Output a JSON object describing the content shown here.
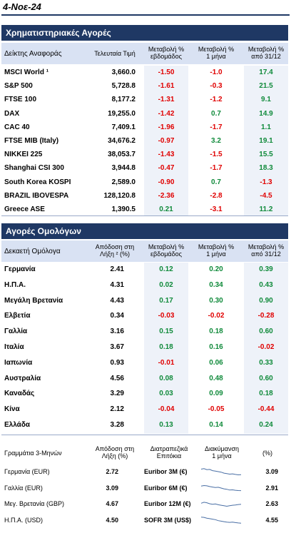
{
  "date": "4-Νοε-24",
  "stocks": {
    "title": "Χρηματιστηριακές Αγορές",
    "headers": {
      "index": "Δείκτης Αναφοράς",
      "last": "Τελευταία Τιμή",
      "week_l1": "Μεταβολή %",
      "week_l2": "εβδομάδος",
      "month_l1": "Μεταβολή %",
      "month_l2": "1 μήνα",
      "ytd_l1": "Μεταβολή %",
      "ytd_l2": "από 31/12"
    },
    "rows": [
      {
        "name": "MSCI World ¹",
        "value": "3,660.0",
        "week": "-1.50",
        "month": "-1.0",
        "ytd": "17.4"
      },
      {
        "name": "S&P 500",
        "value": "5,728.8",
        "week": "-1.61",
        "month": "-0.3",
        "ytd": "21.5"
      },
      {
        "name": "FTSE 100",
        "value": "8,177.2",
        "week": "-1.31",
        "month": "-1.2",
        "ytd": "9.1"
      },
      {
        "name": "DAX",
        "value": "19,255.0",
        "week": "-1.42",
        "month": "0.7",
        "ytd": "14.9"
      },
      {
        "name": "CAC 40",
        "value": "7,409.1",
        "week": "-1.96",
        "month": "-1.7",
        "ytd": "1.1"
      },
      {
        "name": "FTSE MIB (Italy)",
        "value": "34,676.2",
        "week": "-0.97",
        "month": "3.2",
        "ytd": "19.1"
      },
      {
        "name": "NIKKEI 225",
        "value": "38,053.7",
        "week": "-1.43",
        "month": "-1.5",
        "ytd": "15.5"
      },
      {
        "name": "Shanghai CSI 300",
        "value": "3,944.8",
        "week": "-0.47",
        "month": "-1.7",
        "ytd": "18.3"
      },
      {
        "name": "South Korea KOSPI",
        "value": "2,589.0",
        "week": "-0.90",
        "month": "0.7",
        "ytd": "-1.3"
      },
      {
        "name": "BRAZIL IBOVESPA",
        "value": "128,120.8",
        "week": "-2.36",
        "month": "-2.8",
        "ytd": "-4.5"
      },
      {
        "name": "Greece ASE",
        "value": "1,390.5",
        "week": "0.21",
        "month": "-3.1",
        "ytd": "11.2"
      }
    ]
  },
  "bonds": {
    "title": "Αγορές Ομολόγων",
    "headers": {
      "bond": "Δεκαετή Ομόλογα",
      "yield_l1": "Απόδοση στη",
      "yield_l2": "Λήξη ² (%)",
      "week_l1": "Μεταβολή %",
      "week_l2": "εβδομάδος",
      "month_l1": "Μεταβολή %",
      "month_l2": "1 μήνα",
      "ytd_l1": "Μεταβολή %",
      "ytd_l2": "από 31/12"
    },
    "rows": [
      {
        "name": "Γερμανία",
        "yield": "2.41",
        "week": "0.12",
        "month": "0.20",
        "ytd": "0.39"
      },
      {
        "name": "Η.Π.Α.",
        "yield": "4.31",
        "week": "0.02",
        "month": "0.34",
        "ytd": "0.43"
      },
      {
        "name": "Μεγάλη Βρετανία",
        "yield": "4.43",
        "week": "0.17",
        "month": "0.30",
        "ytd": "0.90"
      },
      {
        "name": "Ελβετία",
        "yield": "0.34",
        "week": "-0.03",
        "month": "-0.02",
        "ytd": "-0.28"
      },
      {
        "name": "Γαλλία",
        "yield": "3.16",
        "week": "0.15",
        "month": "0.18",
        "ytd": "0.60"
      },
      {
        "name": "Ιταλία",
        "yield": "3.67",
        "week": "0.18",
        "month": "0.16",
        "ytd": "-0.02"
      },
      {
        "name": "Ιαπωνία",
        "yield": "0.93",
        "week": "-0.01",
        "month": "0.06",
        "ytd": "0.33"
      },
      {
        "name": "Αυστραλία",
        "yield": "4.56",
        "week": "0.08",
        "month": "0.48",
        "ytd": "0.60"
      },
      {
        "name": "Καναδάς",
        "yield": "3.29",
        "week": "0.03",
        "month": "0.09",
        "ytd": "0.18"
      },
      {
        "name": "Κίνα",
        "yield": "2.12",
        "week": "-0.04",
        "month": "-0.05",
        "ytd": "-0.44"
      },
      {
        "name": "Ελλάδα",
        "yield": "3.28",
        "week": "0.13",
        "month": "0.14",
        "ytd": "0.24"
      }
    ]
  },
  "money": {
    "headers": {
      "bills": "Γραμμάτια 3-Μηνών",
      "yield_l1": "Απόδοση στη",
      "yield_l2": "Λήξη (%)",
      "rates_l1": "Διατραπεζικά",
      "rates_l2": "Επιτόκια",
      "spark_l1": "Διακύμανση",
      "spark_l2": "1 μήνα",
      "pct": "(%)"
    },
    "rows": [
      {
        "name": "Γερμανία (EUR)",
        "yield": "2.72",
        "rate_name": "Euribor 3M (€)",
        "rate": "3.09",
        "spark": [
          0.75,
          0.8,
          0.7,
          0.72,
          0.6,
          0.55,
          0.5,
          0.45,
          0.35,
          0.3,
          0.25,
          0.28,
          0.22,
          0.18,
          0.2
        ]
      },
      {
        "name": "Γαλλία (EUR)",
        "yield": "3.09",
        "rate_name": "Euribor 6M (€)",
        "rate": "2.91",
        "spark": [
          0.7,
          0.75,
          0.72,
          0.65,
          0.6,
          0.55,
          0.58,
          0.5,
          0.42,
          0.38,
          0.3,
          0.32,
          0.28,
          0.25,
          0.24
        ]
      },
      {
        "name": "Μεγ. Βρετανία (GBP)",
        "yield": "4.67",
        "rate_name": "Euribor 12M (€)",
        "rate": "2.63",
        "spark": [
          0.55,
          0.65,
          0.6,
          0.5,
          0.45,
          0.48,
          0.4,
          0.35,
          0.3,
          0.25,
          0.3,
          0.35,
          0.38,
          0.42,
          0.45
        ]
      },
      {
        "name": "Η.Π.Α. (USD)",
        "yield": "4.50",
        "rate_name": "SOFR 3M (US$)",
        "rate": "4.55",
        "spark": [
          0.8,
          0.78,
          0.7,
          0.65,
          0.6,
          0.55,
          0.45,
          0.4,
          0.35,
          0.3,
          0.28,
          0.3,
          0.26,
          0.22,
          0.2
        ]
      }
    ]
  },
  "colors": {
    "navy": "#1f3864",
    "light": "#d9e2f3",
    "positive": "#0f8a3a",
    "negative": "#e00000",
    "spark": "#4a6fa5"
  }
}
